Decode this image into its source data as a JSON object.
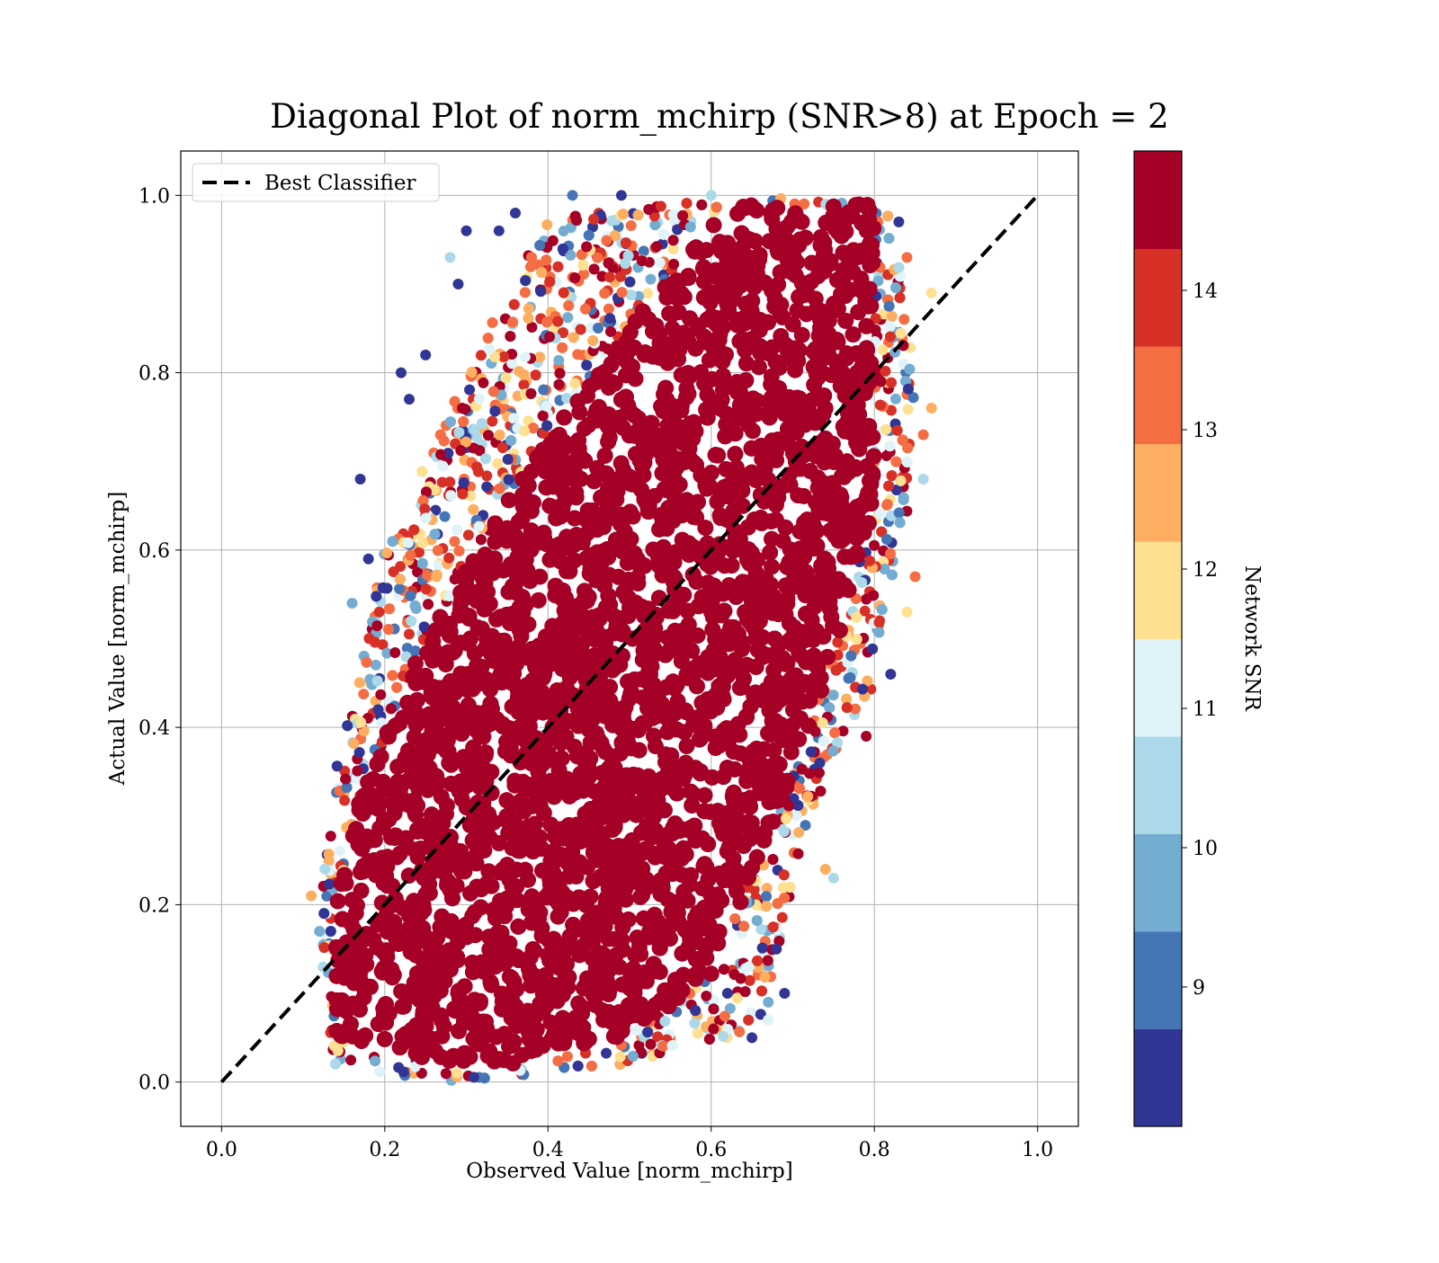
{
  "chart_data": {
    "type": "scatter",
    "title": "Diagonal Plot of norm_mchirp (SNR>8) at Epoch = 2",
    "xlabel": "Observed Value [norm_mchirp]",
    "ylabel": "Actual Value [norm_mchirp]",
    "xlim": [
      -0.05,
      1.05
    ],
    "ylim": [
      -0.05,
      1.05
    ],
    "xticks": [
      "0.0",
      "0.2",
      "0.4",
      "0.6",
      "0.8",
      "1.0"
    ],
    "yticks": [
      "0.0",
      "0.2",
      "0.4",
      "0.6",
      "0.8",
      "1.0"
    ],
    "grid": true,
    "legend": {
      "location": "upper-left",
      "entries": [
        {
          "label": "Best Classifier",
          "style": "dashed",
          "color": "#000000"
        }
      ]
    },
    "reference_line": {
      "label": "Best Classifier",
      "x": [
        0.0,
        1.0
      ],
      "y": [
        0.0,
        1.0
      ]
    },
    "colorbar": {
      "label": "Network SNR",
      "range": [
        8.0,
        15.0
      ],
      "ticks": [
        "9",
        "10",
        "11",
        "12",
        "13",
        "14"
      ],
      "tick_values": [
        9,
        10,
        11,
        12,
        13,
        14
      ],
      "colors": [
        "#313695",
        "#4575b4",
        "#74add1",
        "#abd9e9",
        "#e0f3f8",
        "#fee090",
        "#fdae61",
        "#f46d43",
        "#d73027",
        "#a50026"
      ]
    },
    "density_region": {
      "description": "dense band of high-SNR points around the diagonal",
      "polygon": [
        [
          0.13,
          0.02
        ],
        [
          0.28,
          0.0
        ],
        [
          0.5,
          0.02
        ],
        [
          0.66,
          0.06
        ],
        [
          0.72,
          0.3
        ],
        [
          0.8,
          0.45
        ],
        [
          0.84,
          0.62
        ],
        [
          0.85,
          0.8
        ],
        [
          0.82,
          0.99
        ],
        [
          0.7,
          1.0
        ],
        [
          0.55,
          0.99
        ],
        [
          0.4,
          0.98
        ],
        [
          0.3,
          0.8
        ],
        [
          0.2,
          0.6
        ],
        [
          0.14,
          0.35
        ],
        [
          0.12,
          0.2
        ]
      ]
    },
    "core_region": {
      "description": "solid dark-red core (SNR > 14)",
      "polygon": [
        [
          0.14,
          0.05
        ],
        [
          0.3,
          0.01
        ],
        [
          0.48,
          0.04
        ],
        [
          0.6,
          0.12
        ],
        [
          0.68,
          0.3
        ],
        [
          0.75,
          0.48
        ],
        [
          0.8,
          0.65
        ],
        [
          0.8,
          0.99
        ],
        [
          0.62,
          0.99
        ],
        [
          0.5,
          0.85
        ],
        [
          0.38,
          0.7
        ],
        [
          0.25,
          0.5
        ],
        [
          0.17,
          0.32
        ],
        [
          0.14,
          0.2
        ]
      ]
    },
    "outliers": [
      {
        "x": 0.17,
        "y": 0.68,
        "snr": 8.2
      },
      {
        "x": 0.22,
        "y": 0.8,
        "snr": 8.2
      },
      {
        "x": 0.23,
        "y": 0.77,
        "snr": 8.2
      },
      {
        "x": 0.25,
        "y": 0.82,
        "snr": 8.2
      },
      {
        "x": 0.28,
        "y": 0.93,
        "snr": 10.6
      },
      {
        "x": 0.3,
        "y": 0.96,
        "snr": 8.3
      },
      {
        "x": 0.29,
        "y": 0.9,
        "snr": 8.2
      },
      {
        "x": 0.16,
        "y": 0.54,
        "snr": 9.6
      },
      {
        "x": 0.18,
        "y": 0.59,
        "snr": 8.2
      },
      {
        "x": 0.11,
        "y": 0.21,
        "snr": 12.6
      },
      {
        "x": 0.65,
        "y": 0.05,
        "snr": 8.4
      },
      {
        "x": 0.69,
        "y": 0.1,
        "snr": 8.2
      },
      {
        "x": 0.62,
        "y": 0.1,
        "snr": 8.2
      },
      {
        "x": 0.67,
        "y": 0.09,
        "snr": 9.6
      },
      {
        "x": 0.68,
        "y": 0.15,
        "snr": 8.4
      },
      {
        "x": 0.67,
        "y": 0.07,
        "snr": 11.2
      },
      {
        "x": 0.75,
        "y": 0.23,
        "snr": 10.4
      },
      {
        "x": 0.74,
        "y": 0.24,
        "snr": 12.6
      },
      {
        "x": 0.79,
        "y": 0.39,
        "snr": 14.5
      },
      {
        "x": 0.82,
        "y": 0.46,
        "snr": 8.4
      },
      {
        "x": 0.84,
        "y": 0.53,
        "snr": 12.2
      },
      {
        "x": 0.85,
        "y": 0.57,
        "snr": 13.4
      },
      {
        "x": 0.86,
        "y": 0.68,
        "snr": 10.6
      },
      {
        "x": 0.87,
        "y": 0.76,
        "snr": 12.6
      },
      {
        "x": 0.86,
        "y": 0.73,
        "snr": 13.6
      },
      {
        "x": 0.87,
        "y": 0.89,
        "snr": 12.2
      },
      {
        "x": 0.84,
        "y": 0.93,
        "snr": 13.6
      },
      {
        "x": 0.83,
        "y": 0.97,
        "snr": 8.2
      },
      {
        "x": 0.43,
        "y": 1.0,
        "snr": 9.0
      },
      {
        "x": 0.49,
        "y": 1.0,
        "snr": 8.2
      },
      {
        "x": 0.6,
        "y": 1.0,
        "snr": 10.4
      },
      {
        "x": 0.34,
        "y": 0.96,
        "snr": 8.4
      },
      {
        "x": 0.36,
        "y": 0.98,
        "snr": 8.2
      },
      {
        "x": 0.12,
        "y": 0.17,
        "snr": 9.6
      }
    ]
  }
}
